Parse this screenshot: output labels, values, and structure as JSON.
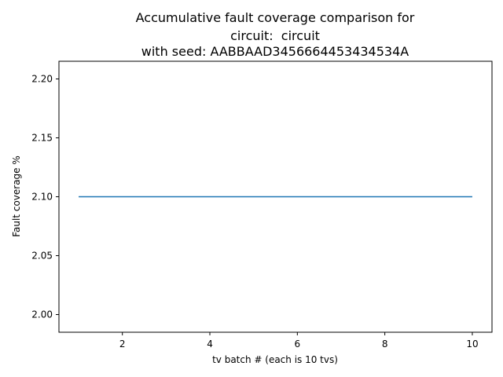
{
  "chart_data": {
    "type": "line",
    "title_lines": [
      "Accumulative fault coverage comparison for",
      "circuit:  circuit",
      "with seed: AABBAAD3456664453434534A"
    ],
    "xlabel": "tv batch # (each is 10 tvs)",
    "ylabel": "Fault coverage %",
    "xlim": [
      0.55,
      10.45
    ],
    "ylim": [
      1.985,
      2.215
    ],
    "xticks": [
      2,
      4,
      6,
      8,
      10
    ],
    "xtick_labels": [
      "2",
      "4",
      "6",
      "8",
      "10"
    ],
    "yticks": [
      2.0,
      2.05,
      2.1,
      2.15,
      2.2
    ],
    "ytick_labels": [
      "2.00",
      "2.05",
      "2.10",
      "2.15",
      "2.20"
    ],
    "x": [
      1,
      2,
      3,
      4,
      5,
      6,
      7,
      8,
      9,
      10
    ],
    "series": [
      {
        "values": [
          2.1,
          2.1,
          2.1,
          2.1,
          2.1,
          2.1,
          2.1,
          2.1,
          2.1,
          2.1
        ],
        "color": "#1f77b4"
      }
    ],
    "grid": false,
    "legend": "none"
  }
}
